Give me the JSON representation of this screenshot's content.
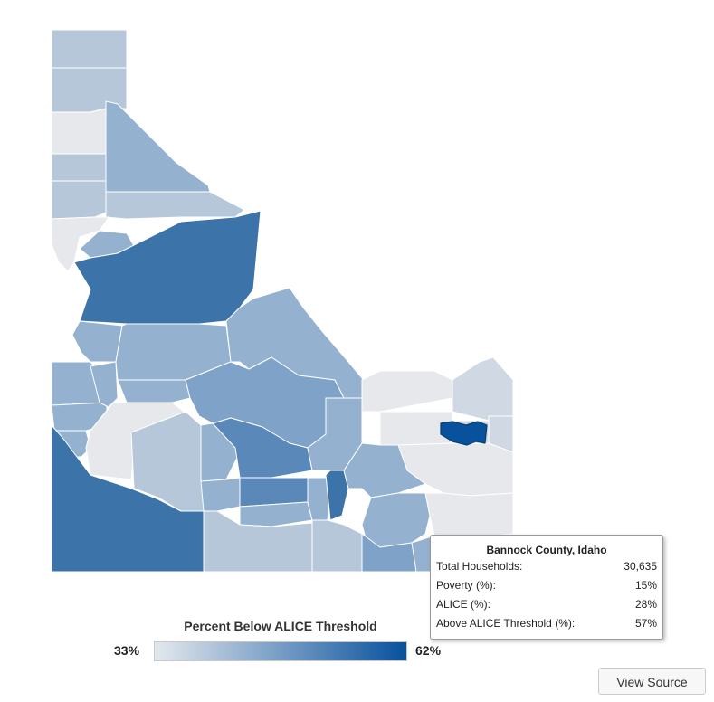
{
  "legend": {
    "title": "Percent Below ALICE Threshold",
    "min_label": "33%",
    "max_label": "62%",
    "min_value": 33,
    "max_value": 62,
    "color_min": "#e4e8ee",
    "color_max": "#08519c"
  },
  "tooltip": {
    "title": "Bannock County, Idaho",
    "rows": [
      {
        "label": "Total Households:",
        "value": "30,635"
      },
      {
        "label": "Poverty (%):",
        "value": "15%"
      },
      {
        "label": "ALICE (%):",
        "value": "28%"
      },
      {
        "label": "Above ALICE Threshold (%):",
        "value": "57%"
      }
    ]
  },
  "button": {
    "label": "View Source"
  },
  "map_colors": {
    "very_light": "#e6e8eb",
    "light": "#cfd8e3",
    "light_mid": "#b7c7da",
    "mid": "#94b1cf",
    "mid_dark": "#7ea2c8",
    "dark": "#5a88b8",
    "darker": "#3c73a8",
    "highlight": "#08519c"
  }
}
